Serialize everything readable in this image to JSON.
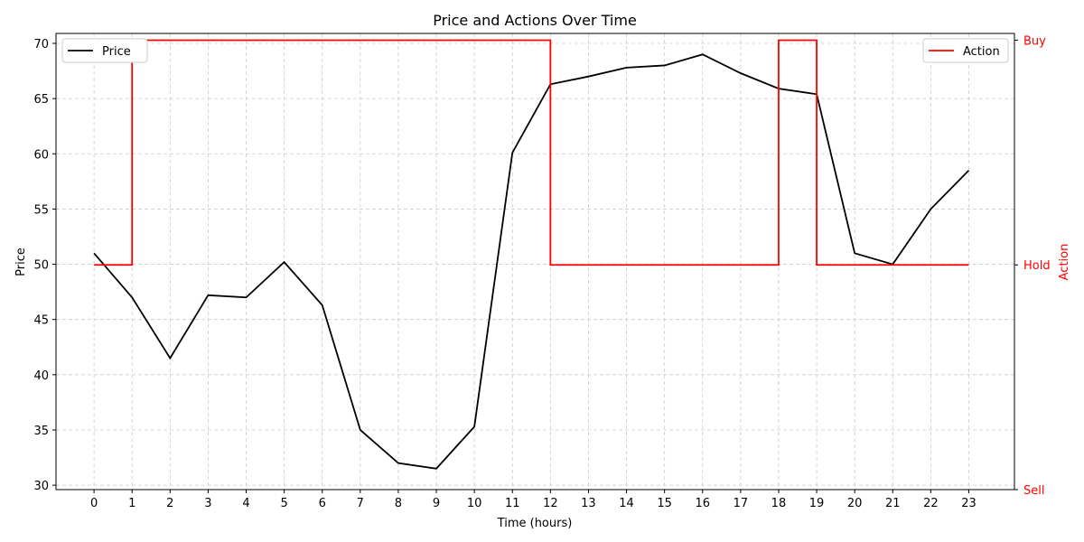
{
  "chart_data": {
    "type": "line",
    "title": "Price and Actions Over Time",
    "xlabel": "Time (hours)",
    "ylabel": "Price",
    "y2label": "Action",
    "x": [
      0,
      1,
      2,
      3,
      4,
      5,
      6,
      7,
      8,
      9,
      10,
      11,
      12,
      13,
      14,
      15,
      16,
      17,
      18,
      19,
      20,
      21,
      22,
      23
    ],
    "xlim": [
      -1,
      24.2
    ],
    "ylim": [
      29.6,
      70.9
    ],
    "yticks": [
      30,
      35,
      40,
      45,
      50,
      55,
      60,
      65,
      70
    ],
    "y2lim": [
      0,
      2.03
    ],
    "y2ticks": [
      {
        "value": 0,
        "label": "Sell"
      },
      {
        "value": 1,
        "label": "Hold"
      },
      {
        "value": 2,
        "label": "Buy"
      }
    ],
    "grid": true,
    "series": [
      {
        "name": "Price",
        "axis": "left",
        "color": "#000000",
        "step": false,
        "values": [
          51.0,
          47.0,
          41.5,
          47.2,
          47.0,
          50.2,
          46.3,
          35.0,
          32.0,
          31.5,
          35.3,
          60.1,
          66.3,
          67.0,
          67.8,
          68.0,
          69.0,
          67.3,
          65.9,
          65.4,
          51.0,
          50.0,
          55.0,
          58.5
        ]
      },
      {
        "name": "Action",
        "axis": "right",
        "color": "#ff0000",
        "step": true,
        "values": [
          1,
          2,
          2,
          2,
          2,
          2,
          2,
          2,
          2,
          2,
          2,
          2,
          1,
          1,
          1,
          1,
          1,
          1,
          2,
          1,
          1,
          1,
          1,
          1
        ]
      }
    ],
    "legends": [
      {
        "position": "top-left",
        "series": "Price"
      },
      {
        "position": "top-right",
        "series": "Action"
      }
    ]
  }
}
